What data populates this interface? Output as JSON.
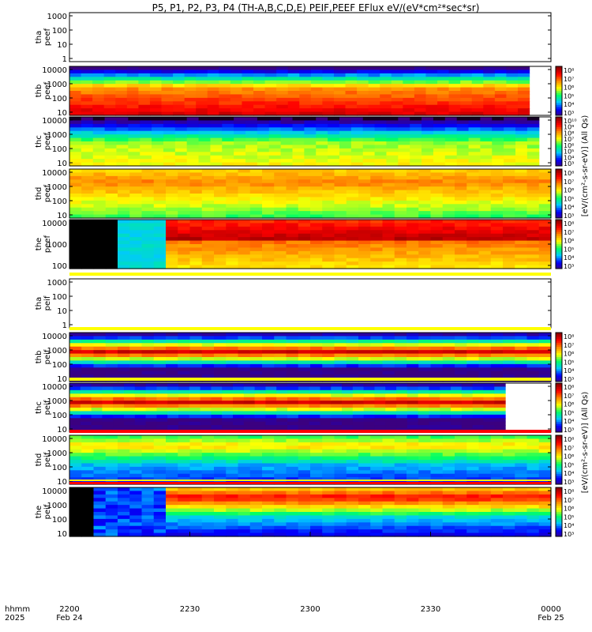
{
  "chart_data": {
    "type": "heatmap",
    "title": "P5, P1, P2, P3, P4 (TH-A,B,C,D,E) PEIF,PEEF EFlux eV/(eV*cm²*sec*sr)",
    "time_axis": {
      "row_label_1": "hhmm",
      "row_label_2": "2025",
      "ticks": [
        {
          "label": "2200",
          "date": "Feb 24"
        },
        {
          "label": "2230",
          "date": ""
        },
        {
          "label": "2300",
          "date": ""
        },
        {
          "label": "2330",
          "date": ""
        },
        {
          "label": "0000",
          "date": "Feb 25"
        }
      ]
    },
    "colorbar_title_electron": "[eV/(cm²-s-sr-eV)] (All Qs)",
    "colorbar_title_ion": "[eV/(cm²-s-sr-eV)] (All Qs)",
    "panels": [
      {
        "probe": "tha",
        "species": "peef",
        "ylabels": [
          "1000",
          "100",
          "10",
          "1"
        ],
        "has_data": false,
        "cbar": []
      },
      {
        "probe": "thb",
        "species": "peef",
        "ylabels": [
          "10000",
          "1000",
          "100",
          "10"
        ],
        "has_data": true,
        "profile": "elec_hot",
        "coverage_end": 0.955,
        "cbar": [
          "10⁸",
          "10⁷",
          "10⁶",
          "10⁵",
          "10⁴",
          "10³"
        ]
      },
      {
        "probe": "thc",
        "species": "peef",
        "ylabels": [
          "10000",
          "1000",
          "100",
          "10"
        ],
        "has_data": true,
        "profile": "elec_warm",
        "coverage_end": 0.975,
        "cbar": [
          "10¹⁰",
          "10⁹",
          "10⁸",
          "10⁷",
          "10⁶",
          "10⁵",
          "10⁴",
          "10³"
        ]
      },
      {
        "probe": "thd",
        "species": "peef",
        "ylabels": [
          "10000",
          "1000",
          "100",
          "10"
        ],
        "has_data": true,
        "profile": "elec_sheath",
        "coverage_end": 1.0,
        "cbar": [
          "10⁸",
          "10⁷",
          "10⁶",
          "10⁵",
          "10⁴",
          "10³"
        ]
      },
      {
        "probe": "the",
        "species": "peef",
        "ylabels": [
          "10000",
          "1000",
          "100"
        ],
        "has_data": true,
        "profile": "elec_the",
        "coverage_end": 1.0,
        "cbar": [
          "10⁸",
          "10⁷",
          "10⁶",
          "10⁵",
          "10⁴",
          "10³"
        ]
      },
      {
        "probe": "tha",
        "species": "peif",
        "ylabels": [
          "1000",
          "100",
          "10",
          "1"
        ],
        "has_data": false,
        "cbar": []
      },
      {
        "probe": "thb",
        "species": "peif",
        "ylabels": [
          "10000",
          "1000",
          "100",
          "10"
        ],
        "has_data": true,
        "profile": "ion_band",
        "coverage_end": 1.0,
        "cbar": [
          "10⁸",
          "10⁷",
          "10⁶",
          "10⁵",
          "10⁴",
          "10³"
        ]
      },
      {
        "probe": "thc",
        "species": "peif",
        "ylabels": [
          "10000",
          "1000",
          "100",
          "10"
        ],
        "has_data": true,
        "profile": "ion_band",
        "coverage_end": 0.905,
        "cbar": [
          "10⁸",
          "10⁷",
          "10⁶",
          "10⁵",
          "10⁴",
          "10³"
        ]
      },
      {
        "probe": "thd",
        "species": "peif",
        "ylabels": [
          "10000",
          "1000",
          "100",
          "10"
        ],
        "has_data": true,
        "profile": "ion_sheath",
        "coverage_end": 1.0,
        "cbar": [
          "10⁸",
          "10⁷",
          "10⁶",
          "10⁵",
          "10⁴",
          "10³"
        ]
      },
      {
        "probe": "the",
        "species": "peif",
        "ylabels": [
          "10000",
          "1000",
          "100",
          "10"
        ],
        "has_data": true,
        "profile": "ion_the",
        "coverage_end": 1.0,
        "cbar": [
          "10⁸",
          "10⁷",
          "10⁶",
          "10⁵",
          "10⁴",
          "10³"
        ]
      }
    ],
    "colormap": [
      "#3b0080",
      "#0000ff",
      "#00c8ff",
      "#00ff64",
      "#ffff00",
      "#ff8c00",
      "#ff0000",
      "#8b0000"
    ]
  }
}
